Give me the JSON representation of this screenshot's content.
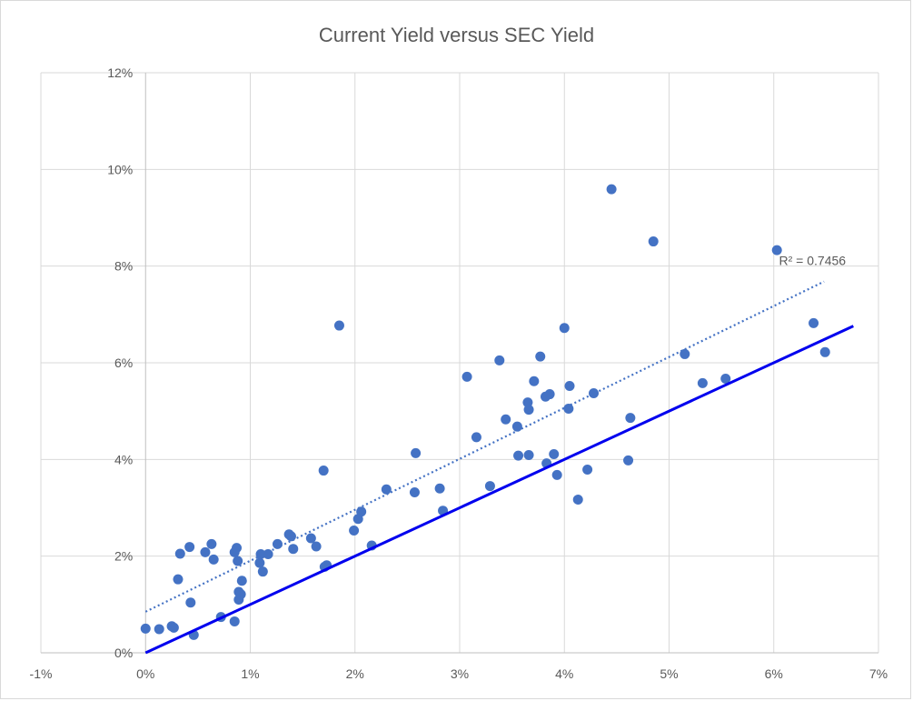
{
  "chart_data": {
    "type": "scatter",
    "title": "Current Yield versus SEC Yield",
    "xlabel": "",
    "ylabel": "",
    "xlim": [
      -0.01,
      0.07
    ],
    "ylim": [
      0,
      0.12
    ],
    "x_ticks": [
      "-1%",
      "0%",
      "1%",
      "2%",
      "3%",
      "4%",
      "5%",
      "6%",
      "7%"
    ],
    "y_ticks": [
      "0%",
      "2%",
      "4%",
      "6%",
      "8%",
      "10%",
      "12%"
    ],
    "grid": true,
    "legend": "none",
    "point_color": "#4472c4",
    "points": [
      [
        0.0,
        0.005
      ],
      [
        0.0013,
        0.0049
      ],
      [
        0.0025,
        0.0055
      ],
      [
        0.0027,
        0.0052
      ],
      [
        0.0031,
        0.0152
      ],
      [
        0.0033,
        0.0205
      ],
      [
        0.0042,
        0.0219
      ],
      [
        0.0043,
        0.0104
      ],
      [
        0.0046,
        0.0037
      ],
      [
        0.0057,
        0.0208
      ],
      [
        0.0063,
        0.0225
      ],
      [
        0.0065,
        0.0193
      ],
      [
        0.0072,
        0.0074
      ],
      [
        0.0085,
        0.0065
      ],
      [
        0.0085,
        0.0208
      ],
      [
        0.0087,
        0.0217
      ],
      [
        0.0088,
        0.019
      ],
      [
        0.0089,
        0.011
      ],
      [
        0.0089,
        0.0126
      ],
      [
        0.0091,
        0.0121
      ],
      [
        0.0092,
        0.0149
      ],
      [
        0.0109,
        0.0186
      ],
      [
        0.011,
        0.0204
      ],
      [
        0.0112,
        0.0168
      ],
      [
        0.0117,
        0.0204
      ],
      [
        0.0126,
        0.0225
      ],
      [
        0.0137,
        0.0245
      ],
      [
        0.0139,
        0.0241
      ],
      [
        0.0141,
        0.0215
      ],
      [
        0.0158,
        0.0237
      ],
      [
        0.0163,
        0.022
      ],
      [
        0.017,
        0.0377
      ],
      [
        0.0171,
        0.0178
      ],
      [
        0.0173,
        0.0181
      ],
      [
        0.0185,
        0.0677
      ],
      [
        0.0199,
        0.0253
      ],
      [
        0.0203,
        0.0277
      ],
      [
        0.0206,
        0.0292
      ],
      [
        0.0216,
        0.0222
      ],
      [
        0.023,
        0.0338
      ],
      [
        0.0257,
        0.0332
      ],
      [
        0.0258,
        0.0413
      ],
      [
        0.0281,
        0.034
      ],
      [
        0.0284,
        0.0294
      ],
      [
        0.0307,
        0.0571
      ],
      [
        0.0316,
        0.0446
      ],
      [
        0.0329,
        0.0345
      ],
      [
        0.0338,
        0.0605
      ],
      [
        0.0344,
        0.0483
      ],
      [
        0.0355,
        0.0468
      ],
      [
        0.0356,
        0.0408
      ],
      [
        0.0365,
        0.0518
      ],
      [
        0.0366,
        0.0503
      ],
      [
        0.0366,
        0.0409
      ],
      [
        0.0371,
        0.0562
      ],
      [
        0.0377,
        0.0613
      ],
      [
        0.0382,
        0.053
      ],
      [
        0.0383,
        0.0392
      ],
      [
        0.0386,
        0.0535
      ],
      [
        0.039,
        0.0411
      ],
      [
        0.0393,
        0.0368
      ],
      [
        0.04,
        0.0672
      ],
      [
        0.0404,
        0.0505
      ],
      [
        0.0405,
        0.0552
      ],
      [
        0.0413,
        0.0317
      ],
      [
        0.0422,
        0.0379
      ],
      [
        0.0428,
        0.0537
      ],
      [
        0.0445,
        0.0959
      ],
      [
        0.0461,
        0.0398
      ],
      [
        0.0463,
        0.0486
      ],
      [
        0.0485,
        0.0851
      ],
      [
        0.0515,
        0.0618
      ],
      [
        0.0532,
        0.0558
      ],
      [
        0.0554,
        0.0567
      ],
      [
        0.0603,
        0.0833
      ],
      [
        0.0638,
        0.0682
      ],
      [
        0.0649,
        0.0622
      ]
    ],
    "trendline": {
      "style": "dotted",
      "color": "#4472c4",
      "x": [
        0.0,
        0.0648
      ],
      "y": [
        0.0085,
        0.0768
      ],
      "label": "R² = 0.7456"
    },
    "reference_line": {
      "style": "solid",
      "color": "#0000ee",
      "x": [
        0.0,
        0.0676
      ],
      "y": [
        0.0,
        0.0676
      ]
    }
  }
}
